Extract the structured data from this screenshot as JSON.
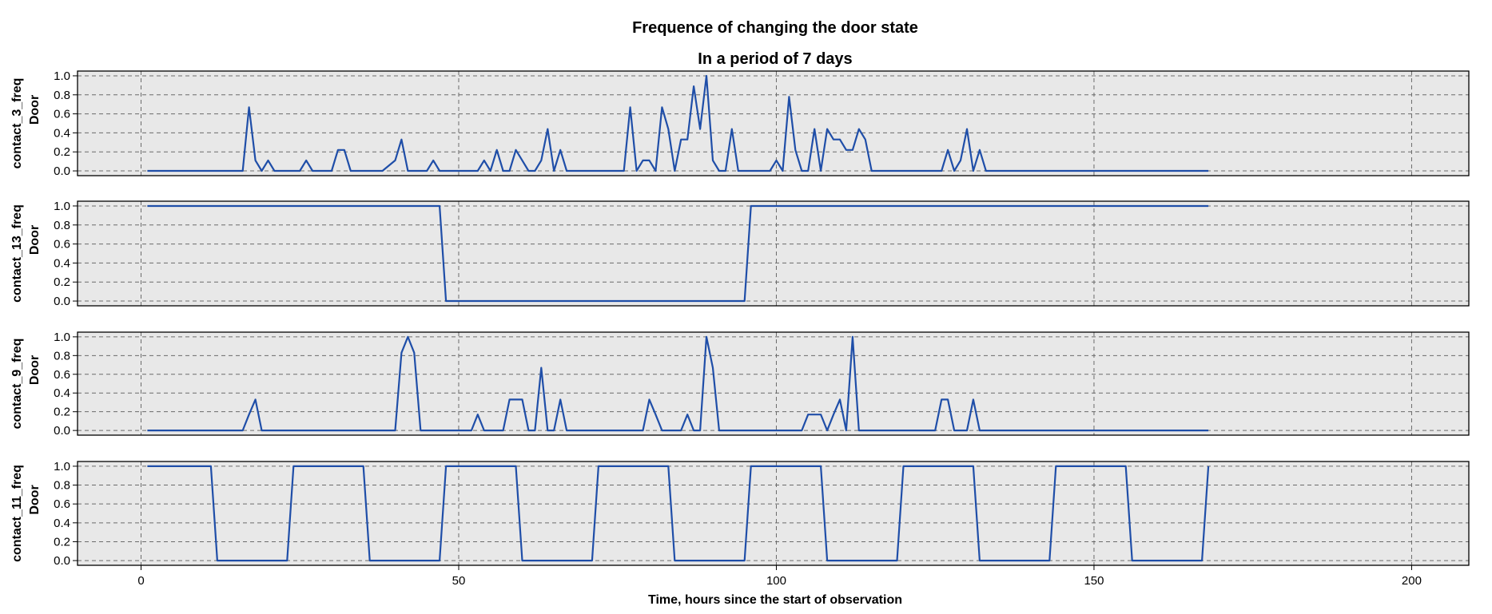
{
  "chart_data": {
    "type": "line",
    "title": "Frequence of changing the door state",
    "subtitle": "In a period of 7 days",
    "xlabel": "Time, hours since the start of observation",
    "xlim": [
      -10,
      209
    ],
    "xticks": [
      0,
      50,
      100,
      150,
      200
    ],
    "xtick_labels": [
      "0",
      "50",
      "100",
      "150",
      "200"
    ],
    "ylim": [
      -0.05,
      1.05
    ],
    "yticks": [
      0.0,
      0.2,
      0.4,
      0.6,
      0.8,
      1.0
    ],
    "ytick_labels": [
      "0.0",
      "0.2",
      "0.4",
      "0.6",
      "0.8",
      "1.0"
    ],
    "grid": "dashed",
    "line_color": "#1f4ea8",
    "panel_background": "#e8e8e8",
    "panels": [
      {
        "ylabel": "contact_3_freq",
        "ylabel2": "Door",
        "x": [
          1,
          16,
          17,
          18,
          19,
          20,
          21,
          22,
          25,
          26,
          27,
          30,
          31,
          32,
          33,
          38,
          40,
          41,
          42,
          45,
          46,
          47,
          52,
          53,
          54,
          55,
          56,
          57,
          58,
          59,
          60,
          61,
          62,
          63,
          64,
          65,
          66,
          67,
          68,
          69,
          76,
          77,
          78,
          79,
          80,
          81,
          82,
          83,
          84,
          85,
          86,
          87,
          88,
          89,
          90,
          91,
          92,
          93,
          94,
          95,
          96,
          99,
          100,
          101,
          102,
          103,
          104,
          105,
          106,
          107,
          108,
          109,
          110,
          111,
          112,
          113,
          114,
          115,
          116,
          117,
          126,
          127,
          128,
          129,
          130,
          131,
          132,
          133,
          168
        ],
        "y": [
          0,
          0,
          0.67,
          0.11,
          0,
          0.11,
          0,
          0,
          0,
          0.11,
          0,
          0,
          0.22,
          0.22,
          0,
          0,
          0.11,
          0.33,
          0,
          0,
          0.11,
          0,
          0,
          0,
          0.11,
          0,
          0.22,
          0,
          0,
          0.22,
          0.11,
          0,
          0,
          0.11,
          0.44,
          0,
          0.22,
          0,
          0,
          0,
          0,
          0.67,
          0,
          0.11,
          0.11,
          0,
          0.67,
          0.44,
          0,
          0.33,
          0.33,
          0.89,
          0.44,
          1.0,
          0.11,
          0,
          0,
          0.44,
          0,
          0,
          0,
          0,
          0.11,
          0,
          0.78,
          0.22,
          0,
          0,
          0.44,
          0,
          0.44,
          0.33,
          0.33,
          0.22,
          0.22,
          0.44,
          0.33,
          0,
          0,
          0,
          0,
          0.22,
          0,
          0.11,
          0.44,
          0,
          0.22,
          0,
          0
        ]
      },
      {
        "ylabel": "contact_13_freq",
        "ylabel2": "Door",
        "x": [
          1,
          47,
          48,
          95,
          96,
          168
        ],
        "y": [
          1,
          1,
          0,
          0,
          1,
          1
        ]
      },
      {
        "ylabel": "contact_9_freq",
        "ylabel2": "Door",
        "x": [
          1,
          16,
          17,
          18,
          19,
          40,
          41,
          42,
          43,
          44,
          52,
          53,
          54,
          55,
          57,
          58,
          59,
          60,
          61,
          62,
          63,
          64,
          65,
          66,
          67,
          68,
          69,
          79,
          80,
          81,
          82,
          85,
          86,
          87,
          88,
          89,
          90,
          91,
          104,
          105,
          106,
          107,
          108,
          109,
          110,
          111,
          112,
          113,
          114,
          125,
          126,
          127,
          128,
          129,
          130,
          131,
          132,
          168
        ],
        "y": [
          0,
          0,
          0.17,
          0.33,
          0,
          0,
          0.83,
          1.0,
          0.83,
          0,
          0,
          0.17,
          0,
          0,
          0,
          0.33,
          0.33,
          0.33,
          0,
          0,
          0.67,
          0,
          0,
          0.33,
          0,
          0,
          0,
          0,
          0.33,
          0.17,
          0,
          0,
          0.17,
          0,
          0,
          1.0,
          0.67,
          0,
          0,
          0.17,
          0.17,
          0.17,
          0,
          0.17,
          0.33,
          0,
          1.0,
          0,
          0,
          0,
          0.33,
          0.33,
          0,
          0,
          0,
          0.33,
          0,
          0
        ]
      },
      {
        "ylabel": "contact_11_freq",
        "ylabel2": "Door",
        "x": [
          1,
          11,
          12,
          23,
          24,
          35,
          36,
          47,
          48,
          59,
          60,
          71,
          72,
          83,
          84,
          95,
          96,
          107,
          108,
          119,
          120,
          131,
          132,
          143,
          144,
          155,
          156,
          167,
          168
        ],
        "y": [
          1,
          1,
          0,
          0,
          1,
          1,
          0,
          0,
          1,
          1,
          0,
          0,
          1,
          1,
          0,
          0,
          1,
          1,
          0,
          0,
          1,
          1,
          0,
          0,
          1,
          1,
          0,
          0,
          1
        ]
      }
    ]
  }
}
